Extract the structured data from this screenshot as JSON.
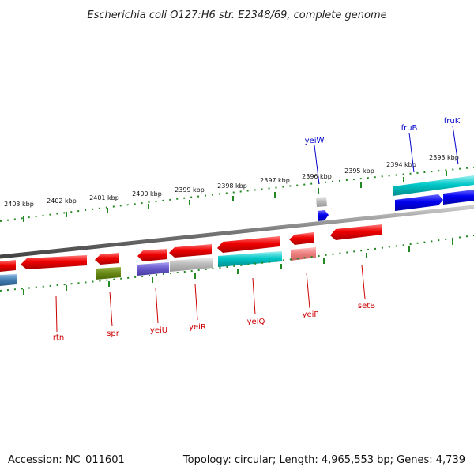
{
  "title": "Escherichia coli O127:H6 str. E2348/69, complete genome",
  "footer": {
    "accession": "Accession: NC_011601",
    "summary": "Topology: circular; Length: 4,965,553 bp; Genes: 4,739"
  },
  "kbp_labels": [
    "2403 kbp",
    "2402 kbp",
    "2401 kbp",
    "2400 kbp",
    "2399 kbp",
    "2398 kbp",
    "2397 kbp",
    "2396 kbp",
    "2395 kbp",
    "2394 kbp",
    "2393 kbp"
  ],
  "gene_labels": {
    "fruB": "fruB",
    "fruK": "fruK",
    "yeiW": "yeiW",
    "rtn": "rtn",
    "spr": "spr",
    "yeiU": "yeiU",
    "yeiR": "yeiR",
    "yeiQ": "yeiQ",
    "yeiP": "yeiP",
    "setB": "setB"
  },
  "colors": {
    "gene_red": "#ee0000",
    "cog_blue": "#0000ee",
    "cog_cyan": "#00c0c0",
    "cog_olive": "#6a8a18",
    "cog_purple": "#6a5acd",
    "cog_gray": "#bbbbbb",
    "cog_pink": "#ee8080",
    "tick_green": "#228822",
    "backbone": "#888888"
  }
}
